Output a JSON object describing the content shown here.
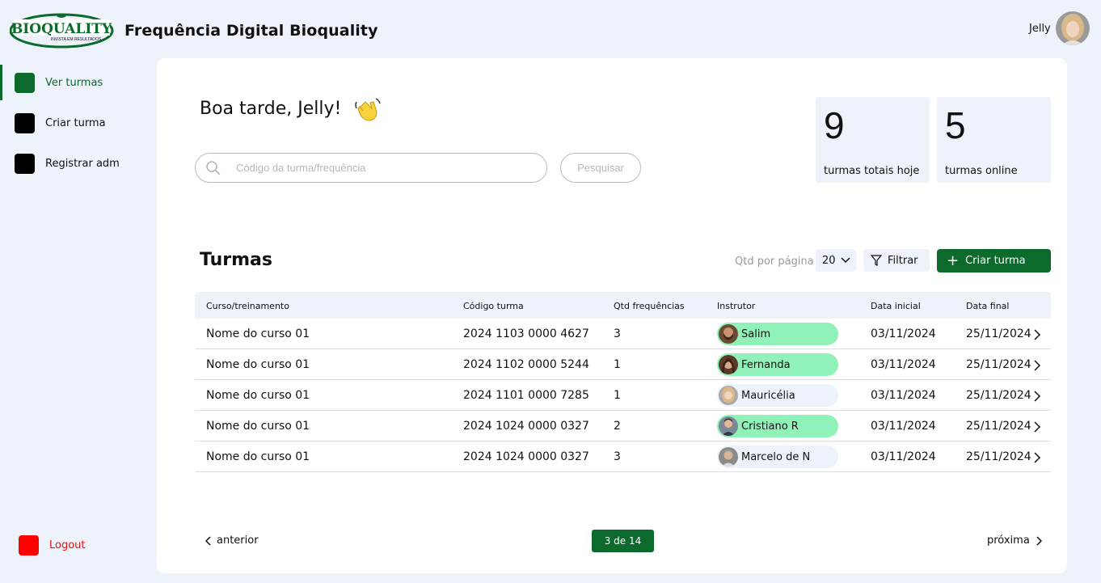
{
  "header": {
    "logo_text": "BIOQUALITY",
    "logo_tagline": "INVISTA EM RESULTADOS",
    "title": "Frequência Digital Bioquality",
    "user_name": "Jelly"
  },
  "sidebar": {
    "items": [
      {
        "label": "Ver turmas",
        "active": true
      },
      {
        "label": "Criar turma",
        "active": false
      },
      {
        "label": "Registrar adm",
        "active": false
      }
    ],
    "logout_label": "Logout"
  },
  "main": {
    "greeting": "Boa tarde, Jelly!",
    "greeting_icon": "waving-hand-icon",
    "search": {
      "placeholder": "Código da turma/frequência",
      "value": "",
      "button_label": "Pesquisar"
    },
    "stats": [
      {
        "value": "9",
        "caption": "turmas totais hoje"
      },
      {
        "value": "5",
        "caption": "turmas online"
      }
    ],
    "section_title": "Turmas",
    "toolbar": {
      "per_page_label": "Qtd por página",
      "per_page_value": "20",
      "filter_label": "Filtrar",
      "create_label": "Criar turma"
    },
    "table": {
      "columns": [
        "Curso/treinamento",
        "Código turma",
        "Qtd frequências",
        "Instrutor",
        "Data inicial",
        "Data final"
      ],
      "rows": [
        {
          "curso": "Nome do curso 01",
          "codigo": "2024 1103 0000 4627",
          "qtd": "3",
          "instrutor": "Salim",
          "status": "green",
          "inicio": "03/11/2024",
          "fim": "25/11/2024"
        },
        {
          "curso": "Nome do curso 01",
          "codigo": "2024 1102 0000 5244",
          "qtd": "1",
          "instrutor": "Fernanda",
          "status": "green",
          "inicio": "03/11/2024",
          "fim": "25/11/2024"
        },
        {
          "curso": "Nome do curso 01",
          "codigo": "2024 1101 0000 7285",
          "qtd": "1",
          "instrutor": "Mauricélia",
          "status": "gray",
          "inicio": "03/11/2024",
          "fim": "25/11/2024"
        },
        {
          "curso": "Nome do curso 01",
          "codigo": "2024 1024 0000 0327",
          "qtd": "2",
          "instrutor": "Cristiano R",
          "status": "green",
          "inicio": "03/11/2024",
          "fim": "25/11/2024"
        },
        {
          "curso": "Nome do curso 01",
          "codigo": "2024 1024 0000 0327",
          "qtd": "3",
          "instrutor": "Marcelo de N",
          "status": "gray",
          "inicio": "03/11/2024",
          "fim": "25/11/2024"
        }
      ]
    },
    "pagination": {
      "prev_label": "anterior",
      "page_indicator": "3 de 14",
      "next_label": "próxima"
    }
  },
  "colors": {
    "brand_green": "#0c6a2d",
    "active_pill": "#90f2b8",
    "inactive_pill": "#eef2fa",
    "logout_red": "#ff0000",
    "background": "#eef2fa"
  }
}
